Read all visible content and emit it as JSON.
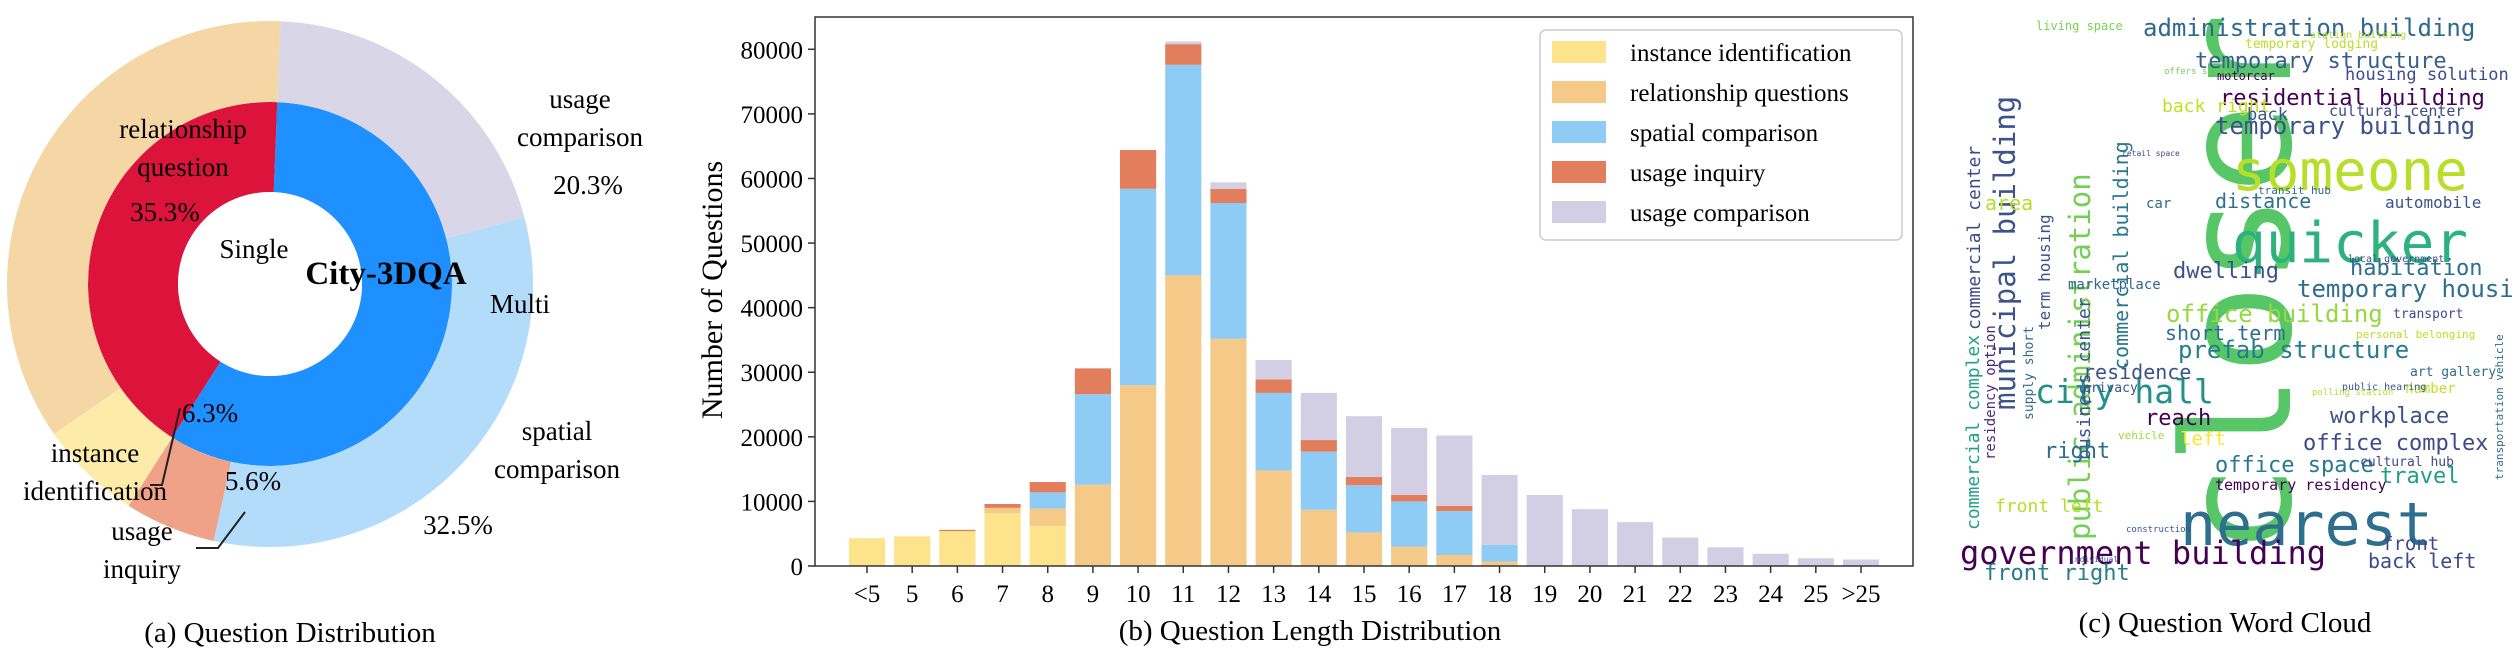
{
  "chart_data": [
    {
      "type": "pie",
      "panel_label": "(a) Question Distribution",
      "center_label": "City-3DQA",
      "inner_ring": [
        {
          "label": "Single",
          "value": 41.6,
          "color": "#DC143C"
        },
        {
          "label": "Multi",
          "value": 58.4,
          "color": "#1E90FF"
        }
      ],
      "outer_ring": [
        {
          "label": "relationship question",
          "value": 35.3,
          "value_label": "35.3%",
          "color": "#F5D6A5"
        },
        {
          "label": "instance identification",
          "value": 6.3,
          "value_label": "6.3%",
          "color": "#FDEBAA"
        },
        {
          "label": "usage inquiry",
          "value": 5.6,
          "value_label": "5.6%",
          "color": "#EFA287"
        },
        {
          "label": "spatial comparison",
          "value": 32.5,
          "value_label": "32.5%",
          "color": "#B3DCFA"
        },
        {
          "label": "usage comparison",
          "value": 20.3,
          "value_label": "20.3%",
          "color": "#D9D7E7"
        }
      ],
      "text": {
        "relationship_l1": "relationship",
        "relationship_l2": "question",
        "usage_comparison_l1": "usage",
        "usage_comparison_l2": "comparison",
        "spatial_l1": "spatial",
        "spatial_l2": "comparison",
        "instance_l1": "instance",
        "instance_l2": "identification",
        "usage_inquiry_l1": "usage",
        "usage_inquiry_l2": "inquiry"
      }
    },
    {
      "type": "bar",
      "stacked": true,
      "panel_label": "(b) Question Length Distribution",
      "ylabel": "Number of Questions",
      "xlabel": "",
      "ylim": [
        0,
        85000
      ],
      "yticks": [
        0,
        10000,
        20000,
        30000,
        40000,
        50000,
        60000,
        70000,
        80000
      ],
      "legend_position": "top-right",
      "categories": [
        "<5",
        "5",
        "6",
        "7",
        "8",
        "9",
        "10",
        "11",
        "12",
        "13",
        "14",
        "15",
        "16",
        "17",
        "18",
        "19",
        "20",
        "21",
        "22",
        "23",
        "24",
        "25",
        ">25"
      ],
      "series": [
        {
          "name": "instance identification",
          "color": "#FDE38C",
          "values": [
            4300,
            4600,
            5400,
            8200,
            6200,
            0,
            0,
            0,
            0,
            0,
            0,
            0,
            0,
            0,
            0,
            0,
            0,
            0,
            0,
            0,
            0,
            0,
            0
          ]
        },
        {
          "name": "relationship questions",
          "color": "#F5C987",
          "values": [
            0,
            0,
            0,
            800,
            2700,
            12600,
            28000,
            45000,
            35200,
            14800,
            8700,
            5200,
            3000,
            1700,
            700,
            0,
            0,
            0,
            0,
            0,
            0,
            0,
            0
          ]
        },
        {
          "name": "spatial comparison",
          "color": "#8FCCF5",
          "values": [
            0,
            0,
            0,
            0,
            2500,
            14000,
            30400,
            32600,
            21000,
            12000,
            9000,
            7300,
            7000,
            6800,
            2600,
            0,
            0,
            0,
            0,
            0,
            0,
            0,
            0
          ]
        },
        {
          "name": "usage inquiry",
          "color": "#E27E5C",
          "values": [
            0,
            0,
            200,
            600,
            1600,
            4000,
            6000,
            3200,
            2200,
            2100,
            1800,
            1300,
            1000,
            800,
            0,
            0,
            0,
            0,
            0,
            0,
            0,
            0,
            0
          ]
        },
        {
          "name": "usage comparison",
          "color": "#D2CFE4",
          "values": [
            0,
            0,
            0,
            0,
            0,
            0,
            0,
            400,
            1000,
            3000,
            7300,
            9400,
            10400,
            10900,
            10800,
            11000,
            8800,
            6800,
            4400,
            2900,
            1900,
            1200,
            1000
          ]
        }
      ]
    },
    {
      "type": "wordcloud",
      "panel_label": "(c) Question Word Cloud",
      "words": [
        {
          "text": "closer"
        },
        {
          "text": "nearest"
        },
        {
          "text": "someone"
        },
        {
          "text": "quicker"
        },
        {
          "text": "government building"
        },
        {
          "text": "public administration"
        },
        {
          "text": "municipal building"
        },
        {
          "text": "administration building"
        },
        {
          "text": "city hall"
        },
        {
          "text": "temporary structure"
        },
        {
          "text": "residential building"
        },
        {
          "text": "temporary building"
        },
        {
          "text": "temporary housing"
        },
        {
          "text": "office building"
        },
        {
          "text": "prefab structure"
        },
        {
          "text": "dwelling"
        },
        {
          "text": "habitation"
        },
        {
          "text": "office complex"
        },
        {
          "text": "office space"
        },
        {
          "text": "workplace"
        },
        {
          "text": "commercial building"
        },
        {
          "text": "commercial center"
        },
        {
          "text": "commercial complex"
        },
        {
          "text": "front right"
        },
        {
          "text": "front left"
        },
        {
          "text": "back left"
        },
        {
          "text": "back right"
        },
        {
          "text": "reach"
        },
        {
          "text": "travel"
        },
        {
          "text": "distance"
        },
        {
          "text": "residence"
        },
        {
          "text": "short term"
        },
        {
          "text": "housing solution"
        },
        {
          "text": "business center"
        },
        {
          "text": "area"
        },
        {
          "text": "back"
        },
        {
          "text": "left"
        },
        {
          "text": "right"
        },
        {
          "text": "front"
        },
        {
          "text": "marketplace"
        },
        {
          "text": "automobile"
        },
        {
          "text": "art gallery"
        },
        {
          "text": "temporary residency"
        },
        {
          "text": "residency option"
        },
        {
          "text": "term housing"
        },
        {
          "text": "cultural center"
        },
        {
          "text": "cultural hub"
        },
        {
          "text": "transport"
        },
        {
          "text": "motorcar"
        },
        {
          "text": "car"
        },
        {
          "text": "privacy"
        },
        {
          "text": "number"
        },
        {
          "text": "vehicle"
        },
        {
          "text": "transit hub"
        },
        {
          "text": "temporary lodging"
        },
        {
          "text": "living space"
        },
        {
          "text": "local government"
        },
        {
          "text": "personal belonging"
        },
        {
          "text": "retail space"
        },
        {
          "text": "offers space"
        },
        {
          "text": "station building"
        },
        {
          "text": "construction"
        },
        {
          "text": "transportation vehicle"
        },
        {
          "text": "individual"
        },
        {
          "text": "public hearing"
        },
        {
          "text": "polling station"
        },
        {
          "text": "supply short"
        }
      ]
    }
  ]
}
